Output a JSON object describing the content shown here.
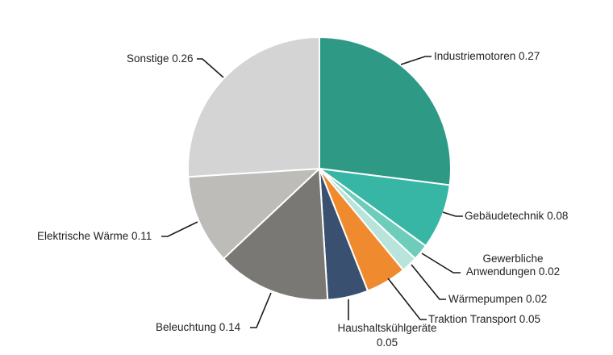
{
  "chart_data": {
    "type": "pie",
    "title": "",
    "start_angle": "12 o'clock",
    "direction": "clockwise",
    "slices": [
      {
        "label": "Industriemotoren",
        "value": 0.27,
        "color": "#2e9a85",
        "display": "Industriemotoren 0.27"
      },
      {
        "label": "Gebäudetechnik",
        "value": 0.08,
        "color": "#38b6a5",
        "display": "Gebäudetechnik 0.08"
      },
      {
        "label": "Gewerbliche Anwendungen",
        "value": 0.02,
        "color": "#6ecdba",
        "display_line1": "Gewerbliche",
        "display_line2": "Anwendungen 0.02"
      },
      {
        "label": "Wärmepumpen",
        "value": 0.02,
        "color": "#b8e4dc",
        "display": "Wärmepumpen  0.02"
      },
      {
        "label": "Traktion Transport",
        "value": 0.05,
        "color": "#f08a2e",
        "display": "Traktion Transport 0.05"
      },
      {
        "label": "Haushaltskühlgeräte",
        "value": 0.05,
        "color": "#3a5070",
        "display_line1": "Haushaltskühlgeräte",
        "display_line2": "0.05"
      },
      {
        "label": "Beleuchtung",
        "value": 0.14,
        "color": "#7a7874",
        "display": "Beleuchtung 0.14"
      },
      {
        "label": "Elektrische Wärme",
        "value": 0.11,
        "color": "#bdbcb9",
        "display": "Elektrische Wärme 0.11"
      },
      {
        "label": "Sonstige",
        "value": 0.26,
        "color": "#d3d4d3",
        "display": "Sonstige 0.26"
      }
    ],
    "legend": "none (data labels with leader lines)"
  }
}
